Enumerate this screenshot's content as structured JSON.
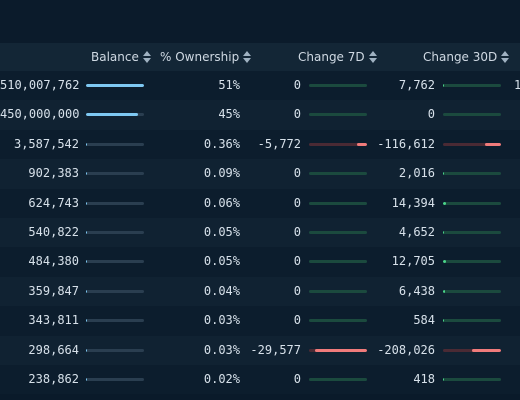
{
  "header": {
    "balance": "Balance",
    "ownership": "% Ownership",
    "change7d": "Change 7D",
    "change30d": "Change 30D"
  },
  "colors": {
    "balance_bar": "#7ec8f2",
    "positive_bar": "#4bd48a",
    "negative_bar": "#f07b7b"
  },
  "rows": [
    {
      "balance": "510,007,762",
      "balance_frac": 1.0,
      "ownership": "51%",
      "c7": "0",
      "c7_frac": 0,
      "c7_sign": "pos",
      "c30": "7,762",
      "c30_frac": 0.02,
      "c30_sign": "pos",
      "extra": "1"
    },
    {
      "balance": "450,000,000",
      "balance_frac": 0.9,
      "ownership": "45%",
      "c7": "0",
      "c7_frac": 0,
      "c7_sign": "pos",
      "c30": "0",
      "c30_frac": 0,
      "c30_sign": "pos",
      "extra": ""
    },
    {
      "balance": "3,587,542",
      "balance_frac": 0.01,
      "ownership": "0.36%",
      "c7": "-5,772",
      "c7_frac": 0.18,
      "c7_sign": "neg",
      "c30": "-116,612",
      "c30_frac": 0.28,
      "c30_sign": "neg",
      "extra": ""
    },
    {
      "balance": "902,383",
      "balance_frac": 0.01,
      "ownership": "0.09%",
      "c7": "0",
      "c7_frac": 0,
      "c7_sign": "pos",
      "c30": "2,016",
      "c30_frac": 0.02,
      "c30_sign": "pos",
      "extra": ""
    },
    {
      "balance": "624,743",
      "balance_frac": 0.01,
      "ownership": "0.06%",
      "c7": "0",
      "c7_frac": 0,
      "c7_sign": "pos",
      "c30": "14,394",
      "c30_frac": 0.06,
      "c30_sign": "pos",
      "extra": ""
    },
    {
      "balance": "540,822",
      "balance_frac": 0.01,
      "ownership": "0.05%",
      "c7": "0",
      "c7_frac": 0,
      "c7_sign": "pos",
      "c30": "4,652",
      "c30_frac": 0.02,
      "c30_sign": "pos",
      "extra": ""
    },
    {
      "balance": "484,380",
      "balance_frac": 0.01,
      "ownership": "0.05%",
      "c7": "0",
      "c7_frac": 0,
      "c7_sign": "pos",
      "c30": "12,705",
      "c30_frac": 0.05,
      "c30_sign": "pos",
      "extra": ""
    },
    {
      "balance": "359,847",
      "balance_frac": 0.01,
      "ownership": "0.04%",
      "c7": "0",
      "c7_frac": 0,
      "c7_sign": "pos",
      "c30": "6,438",
      "c30_frac": 0.03,
      "c30_sign": "pos",
      "extra": ""
    },
    {
      "balance": "343,811",
      "balance_frac": 0.01,
      "ownership": "0.03%",
      "c7": "0",
      "c7_frac": 0,
      "c7_sign": "pos",
      "c30": "584",
      "c30_frac": 0.01,
      "c30_sign": "pos",
      "extra": ""
    },
    {
      "balance": "298,664",
      "balance_frac": 0.01,
      "ownership": "0.03%",
      "c7": "-29,577",
      "c7_frac": 0.9,
      "c7_sign": "neg",
      "c30": "-208,026",
      "c30_frac": 0.5,
      "c30_sign": "neg",
      "extra": ""
    },
    {
      "balance": "238,862",
      "balance_frac": 0.01,
      "ownership": "0.02%",
      "c7": "0",
      "c7_frac": 0,
      "c7_sign": "pos",
      "c30": "418",
      "c30_frac": 0.01,
      "c30_sign": "pos",
      "extra": ""
    }
  ]
}
